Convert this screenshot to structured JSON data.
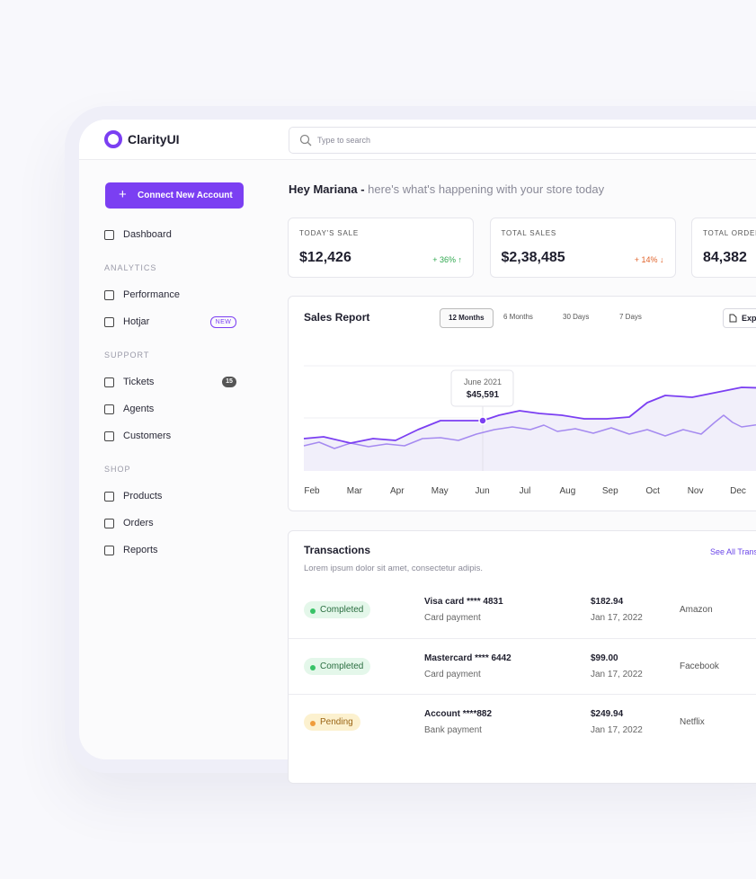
{
  "brand": "ClarityUI",
  "search_placeholder": "Type to search",
  "sidebar": {
    "button": "Connect New Account",
    "nav": [
      {
        "label": "Dashboard"
      }
    ],
    "sections": [
      {
        "title": "ANALYTICS",
        "items": [
          {
            "label": "Performance"
          },
          {
            "label": "Hotjar",
            "badge": "NEW"
          }
        ]
      },
      {
        "title": "SUPPORT",
        "items": [
          {
            "label": "Tickets",
            "badge": "15"
          },
          {
            "label": "Agents"
          },
          {
            "label": "Customers"
          }
        ]
      },
      {
        "title": "SHOP",
        "items": [
          {
            "label": "Products"
          },
          {
            "label": "Orders"
          },
          {
            "label": "Reports"
          }
        ]
      }
    ]
  },
  "greeting": {
    "name": "Hey Mariana -",
    "text": "here's what's happening with your store today"
  },
  "stats": [
    {
      "label": "TODAY'S SALE",
      "value": "$12,426",
      "change": "+ 36% ↑",
      "trend": "up"
    },
    {
      "label": "TOTAL SALES",
      "value": "$2,38,485",
      "change": "+ 14% ↓",
      "trend": "down"
    },
    {
      "label": "TOTAL ORDERS",
      "value": "84,382"
    }
  ],
  "sales_report": {
    "title": "Sales Report",
    "tabs": [
      "12 Months",
      "6 Months",
      "30 Days",
      "7 Days"
    ],
    "export": "Export",
    "tooltip": {
      "date": "June 2021",
      "value": "$45,591"
    },
    "months": [
      "Feb",
      "Mar",
      "Apr",
      "May",
      "Jun",
      "Jul",
      "Aug",
      "Sep",
      "Oct",
      "Nov",
      "Dec"
    ]
  },
  "transactions": {
    "title": "Transactions",
    "subtitle": "Lorem ipsum dolor sit amet, consectetur adipis.",
    "see_all": "See All Transactions",
    "rows": [
      {
        "status": "Completed",
        "method": "Visa card **** 4831",
        "type": "Card payment",
        "amount": "$182.94",
        "date": "Jan 17, 2022",
        "merchant": "Amazon"
      },
      {
        "status": "Completed",
        "method": "Mastercard **** 6442",
        "type": "Card payment",
        "amount": "$99.00",
        "date": "Jan 17, 2022",
        "merchant": "Facebook"
      },
      {
        "status": "Pending",
        "method": "Account ****882",
        "type": "Bank payment",
        "amount": "$249.94",
        "date": "Jan 17, 2022",
        "merchant": "Netflix"
      }
    ]
  }
}
